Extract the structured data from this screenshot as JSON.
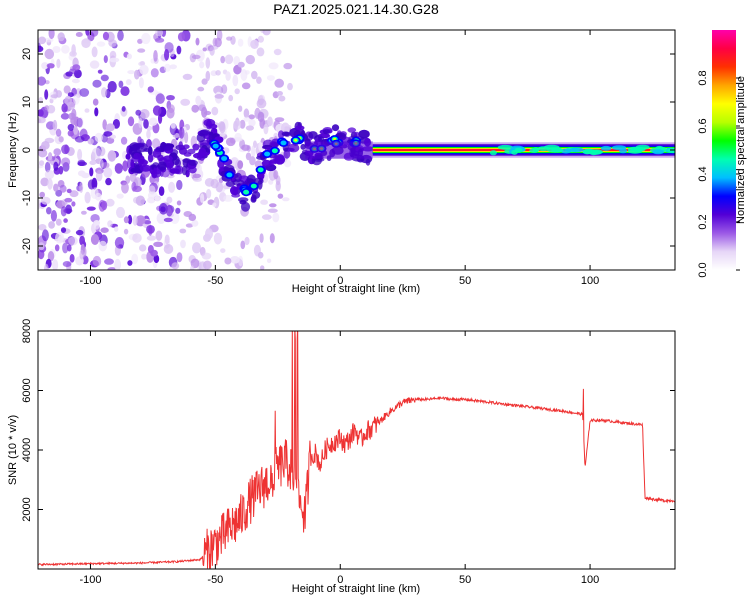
{
  "figure": {
    "title": "PAZ1.2025.021.14.30.G28"
  },
  "chart_data": [
    {
      "type": "heatmap",
      "xlabel": "Height of straight line (km)",
      "ylabel": "Frequency (Hz)",
      "xlim": [
        -121,
        134
      ],
      "ylim": [
        -25,
        25
      ],
      "xticks": [
        -100,
        -50,
        0,
        50,
        100
      ],
      "yticks": [
        -20,
        -10,
        0,
        10,
        20
      ],
      "xtick_labels": [
        "-100",
        "-50",
        "0",
        "50",
        "100"
      ],
      "ytick_labels": [
        "-20",
        "-10",
        "0",
        "10",
        "20"
      ],
      "colorbar": {
        "label": "Normalized spectral amplitude",
        "range": [
          0,
          1
        ],
        "ticks": [
          0.0,
          0.2,
          0.4,
          0.6,
          0.8
        ],
        "tick_labels": [
          "0.0",
          "0.2",
          "0.4",
          "0.6",
          "0.8"
        ],
        "colors": [
          "#ffffff",
          "#e6d6f7",
          "#9b59e6",
          "#5200d6",
          "#0000ff",
          "#00bfff",
          "#00ffb0",
          "#00ff00",
          "#b8ff00",
          "#ffff00",
          "#ffa500",
          "#ff3000",
          "#ff0044",
          "#ff00aa"
        ]
      },
      "features": {
        "scatter_region_x": [
          -121,
          -20
        ],
        "ridge": [
          {
            "x": -60,
            "f": -2
          },
          {
            "x": -52,
            "f": 3
          },
          {
            "x": -46,
            "f": -3
          },
          {
            "x": -42,
            "f": -8
          },
          {
            "x": -38,
            "f": -9
          },
          {
            "x": -34,
            "f": -7
          },
          {
            "x": -30,
            "f": -2
          },
          {
            "x": -24,
            "f": 1
          },
          {
            "x": -17,
            "f": 3
          },
          {
            "x": -13,
            "f": 0
          },
          {
            "x": -6,
            "f": 1
          },
          {
            "x": 0,
            "f": 2
          },
          {
            "x": 6,
            "f": 1
          },
          {
            "x": 12,
            "f": 0
          }
        ],
        "line_x": [
          13,
          134
        ],
        "line_f": 0
      }
    },
    {
      "type": "line",
      "xlabel": "Height of straight line (km)",
      "ylabel": "SNR (10 * v/v)",
      "xlim": [
        -121,
        134
      ],
      "ylim": [
        0,
        8000
      ],
      "xticks": [
        -100,
        -50,
        0,
        50,
        100
      ],
      "yticks": [
        2000,
        4000,
        6000,
        8000
      ],
      "xtick_labels": [
        "-100",
        "-50",
        "0",
        "50",
        "100"
      ],
      "ytick_labels": [
        "2000",
        "4000",
        "6000",
        "8000"
      ],
      "color": "#ee3333",
      "series": [
        {
          "x": [
            -121,
            -100,
            -80,
            -65,
            -56,
            -52,
            -48,
            -45,
            -40,
            -36,
            -32,
            -28,
            -25,
            -22,
            -20,
            -18,
            -16,
            -14,
            -12,
            -10,
            -8,
            -6,
            -4,
            -2,
            0,
            2,
            4,
            6,
            8,
            10,
            12,
            15,
            20,
            25,
            30,
            35,
            40,
            45,
            50,
            60,
            70,
            80,
            90,
            97,
            98,
            100,
            105,
            110,
            115,
            121,
            122,
            125,
            130,
            134
          ],
          "y": [
            150,
            180,
            200,
            250,
            320,
            700,
            1000,
            1300,
            1700,
            2300,
            2700,
            3000,
            3400,
            3600,
            3400,
            3000,
            2200,
            1800,
            3800,
            3900,
            3500,
            4000,
            4200,
            4300,
            4400,
            4200,
            4400,
            4700,
            4300,
            4600,
            4700,
            4900,
            5300,
            5600,
            5700,
            5700,
            5750,
            5700,
            5700,
            5600,
            5500,
            5400,
            5300,
            5200,
            3400,
            5000,
            5000,
            4950,
            4900,
            4850,
            2400,
            2350,
            2300,
            2300
          ]
        }
      ]
    }
  ]
}
